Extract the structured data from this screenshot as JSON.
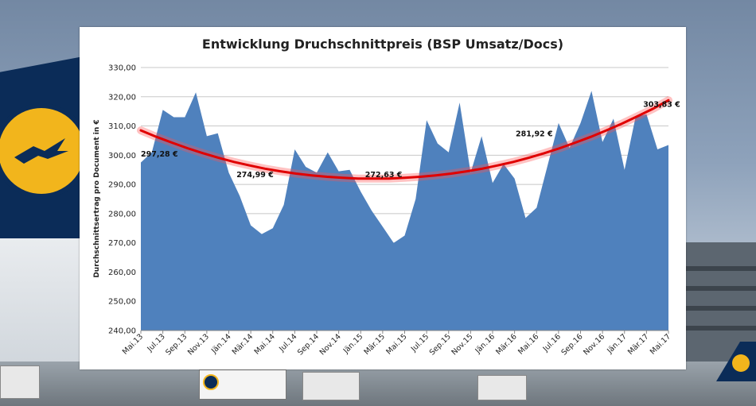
{
  "chart_data": {
    "type": "area",
    "title": "Entwicklung Druchschnittpreis (BSP Umsatz/Docs)",
    "xlabel": "",
    "ylabel": "Durchschnittsertrag pro Document in €",
    "ylim": [
      240,
      330
    ],
    "yticks": [
      "240,00",
      "250,00",
      "260,00",
      "270,00",
      "280,00",
      "290,00",
      "300,00",
      "310,00",
      "320,00",
      "330,00"
    ],
    "grid": true,
    "tick_labels": [
      "Mai.13",
      "Jul.13",
      "Sep.13",
      "Nov.13",
      "Jän.14",
      "Mär.14",
      "Mai.14",
      "Jul.14",
      "Sep.14",
      "Nov.14",
      "Jän.15",
      "Mär.15",
      "Mai.15",
      "Jul.15",
      "Sep.15",
      "Nov.15",
      "Jän.16",
      "Mär.16",
      "Mai.16",
      "Jul.16",
      "Sep.16",
      "Nov.16",
      "Jän.17",
      "Mär.17",
      "Mai.17"
    ],
    "series": [
      {
        "color": "#4f81bd",
        "values": [
          297.5,
          301,
          315.5,
          313,
          313,
          321.5,
          306.5,
          307.5,
          294,
          286,
          276,
          273,
          275,
          283,
          302,
          296,
          294,
          301,
          294.5,
          295,
          287.5,
          281,
          275.5,
          270,
          272.5,
          285,
          312,
          304,
          301,
          318,
          294,
          306.5,
          290.5,
          297,
          292,
          278.5,
          282,
          296.5,
          311,
          302.5,
          311,
          322,
          304.5,
          312.5,
          295,
          313,
          314,
          302,
          303.5
        ]
      }
    ],
    "trendline": {
      "color": "#e00000",
      "values": [
        308.5,
        306.3,
        304.3,
        302.4,
        300.7,
        299.1,
        297.7,
        296.5,
        295.4,
        294.5,
        293.7,
        293.1,
        292.6,
        292.3,
        292.0,
        292.0,
        292.0,
        292.3,
        292.6,
        293.1,
        293.7,
        294.5,
        295.4,
        296.5,
        297.7,
        299.1,
        300.7,
        302.4,
        304.3,
        306.3,
        308.5,
        310.8,
        313.3,
        315.9,
        318.8
      ]
    },
    "annotations": [
      "297,28 €",
      "274,99 €",
      "272,63 €",
      "281,92 €",
      "303,83 €"
    ]
  }
}
